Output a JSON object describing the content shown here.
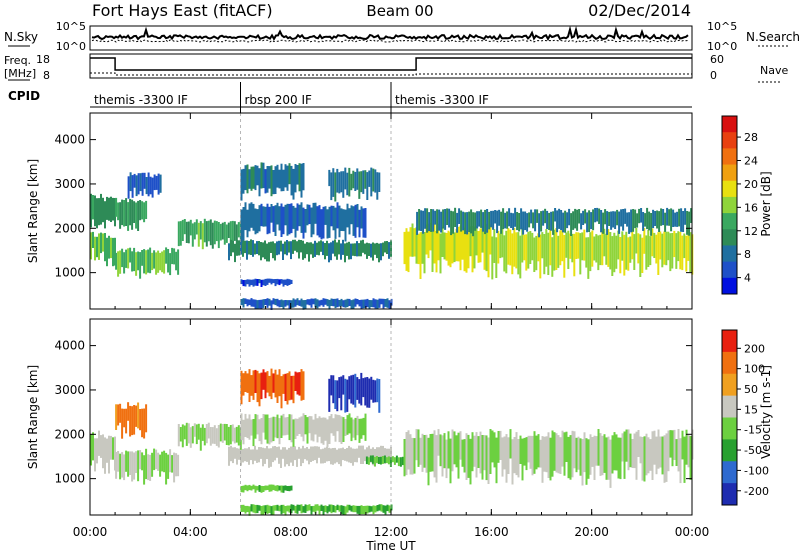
{
  "header": {
    "title": "Fort Hays East (fitACF)",
    "beam": "Beam 00",
    "date": "02/Dec/2014"
  },
  "summary": {
    "nsky_label": "N.Sky",
    "nsearch_label": "N.Search",
    "freq_label_line1": "Freq.",
    "freq_label_line2": "[MHz]",
    "nave_label": "Nave",
    "cpid_label": "CPID",
    "noise_ticks": [
      "10^5",
      "10^0"
    ],
    "freq_ticks": [
      "18",
      "8"
    ],
    "nave_ticks": [
      "60",
      "0"
    ]
  },
  "cpid_segments": [
    {
      "start": 0,
      "end": 6,
      "label": "themis -3300 IF"
    },
    {
      "start": 6,
      "end": 12,
      "label": "rbsp 200 IF"
    },
    {
      "start": 12,
      "end": 24,
      "label": "themis -3300 IF"
    }
  ],
  "chart_data": [
    {
      "type": "heatmap",
      "title": "",
      "parameter": "Power",
      "xlabel": "Time UT",
      "ylabel": "Slant Range [km]",
      "xlim": [
        0,
        24
      ],
      "ylim": [
        180,
        4600
      ],
      "x_ticks": [
        "00:00",
        "04:00",
        "08:00",
        "12:00",
        "16:00",
        "20:00",
        "00:00"
      ],
      "y_ticks": [
        1000,
        2000,
        3000,
        4000
      ],
      "colorbar": {
        "label": "Power [dB]",
        "ticks": [
          "28",
          "24",
          "20",
          "16",
          "12",
          "8",
          "4"
        ],
        "range": [
          0,
          30
        ],
        "colors": [
          "#0010e0",
          "#1e50c8",
          "#1f6fa0",
          "#2e8b57",
          "#3aa860",
          "#8fd43a",
          "#e8e010",
          "#f0a010",
          "#f07010",
          "#e84010",
          "#d81010"
        ]
      },
      "regions": [
        {
          "t0": 0.0,
          "t1": 1.0,
          "r_low": 1250,
          "r_high": 1850,
          "power": 14
        },
        {
          "t0": 0.0,
          "t1": 1.0,
          "r_low": 1900,
          "r_high": 2700,
          "power": 10
        },
        {
          "t0": 1.0,
          "t1": 3.5,
          "r_low": 950,
          "r_high": 1500,
          "power": 13
        },
        {
          "t0": 1.0,
          "t1": 2.2,
          "r_low": 2000,
          "r_high": 2650,
          "power": 11
        },
        {
          "t0": 1.5,
          "t1": 2.8,
          "r_low": 2700,
          "r_high": 3200,
          "power": 5
        },
        {
          "t0": 3.5,
          "t1": 6.0,
          "r_low": 1600,
          "r_high": 2150,
          "power": 12
        },
        {
          "t0": 5.5,
          "t1": 12.0,
          "r_low": 1300,
          "r_high": 1700,
          "power": 9
        },
        {
          "t0": 6.0,
          "t1": 11.0,
          "r_low": 1800,
          "r_high": 2500,
          "power": 6
        },
        {
          "t0": 6.0,
          "t1": 8.5,
          "r_low": 2700,
          "r_high": 3400,
          "power": 7
        },
        {
          "t0": 9.5,
          "t1": 11.5,
          "r_low": 2700,
          "r_high": 3300,
          "power": 8
        },
        {
          "t0": 6.0,
          "t1": 12.0,
          "r_low": 200,
          "r_high": 400,
          "power": 5
        },
        {
          "t0": 6.0,
          "t1": 8.0,
          "r_low": 700,
          "r_high": 850,
          "power": 4
        },
        {
          "t0": 12.5,
          "t1": 16.0,
          "r_low": 1000,
          "r_high": 2000,
          "power": 17
        },
        {
          "t0": 16.0,
          "t1": 24.0,
          "r_low": 1000,
          "r_high": 1900,
          "power": 16
        },
        {
          "t0": 13.0,
          "t1": 24.0,
          "r_low": 1900,
          "r_high": 2400,
          "power": 8
        }
      ]
    },
    {
      "type": "heatmap",
      "title": "",
      "parameter": "Velocity",
      "xlabel": "Time UT",
      "ylabel": "Slant Range [km]",
      "xlim": [
        0,
        24
      ],
      "ylim": [
        180,
        4600
      ],
      "x_ticks": [
        "00:00",
        "04:00",
        "08:00",
        "12:00",
        "16:00",
        "20:00",
        "00:00"
      ],
      "y_ticks": [
        1000,
        2000,
        3000,
        4000
      ],
      "colorbar": {
        "label": "Velocity [m s-1]",
        "ticks": [
          "200",
          "100",
          "50",
          "15",
          "-15",
          "-50",
          "-100",
          "-200"
        ],
        "range": [
          -250,
          250
        ],
        "colors": [
          "#1e2cb0",
          "#2e6ad0",
          "#28a030",
          "#6cd040",
          "#c8c8c0",
          "#f0a020",
          "#f07010",
          "#e82010"
        ]
      },
      "regions": [
        {
          "t0": 0.0,
          "t1": 1.0,
          "r_low": 1200,
          "r_high": 2000,
          "velocity": 0
        },
        {
          "t0": 1.0,
          "t1": 3.5,
          "r_low": 950,
          "r_high": 1600,
          "velocity": 5
        },
        {
          "t0": 1.0,
          "t1": 2.2,
          "r_low": 2000,
          "r_high": 2650,
          "velocity": 150
        },
        {
          "t0": 3.5,
          "t1": 6.0,
          "r_low": 1700,
          "r_high": 2200,
          "velocity": 0
        },
        {
          "t0": 5.5,
          "t1": 12.0,
          "r_low": 1300,
          "r_high": 1700,
          "velocity": 30
        },
        {
          "t0": 11.0,
          "t1": 12.5,
          "r_low": 1300,
          "r_high": 1500,
          "velocity": -60
        },
        {
          "t0": 6.0,
          "t1": 11.0,
          "r_low": 1800,
          "r_high": 2400,
          "velocity": 5
        },
        {
          "t0": 6.0,
          "t1": 8.5,
          "r_low": 2700,
          "r_high": 3400,
          "velocity": 180
        },
        {
          "t0": 9.5,
          "t1": 11.5,
          "r_low": 2600,
          "r_high": 3300,
          "velocity": -200
        },
        {
          "t0": 6.0,
          "t1": 12.0,
          "r_low": 200,
          "r_high": 400,
          "velocity": -60
        },
        {
          "t0": 6.0,
          "t1": 8.0,
          "r_low": 700,
          "r_high": 850,
          "velocity": -50
        },
        {
          "t0": 12.5,
          "t1": 24.0,
          "r_low": 1000,
          "r_high": 2000,
          "velocity": 0
        }
      ]
    }
  ]
}
